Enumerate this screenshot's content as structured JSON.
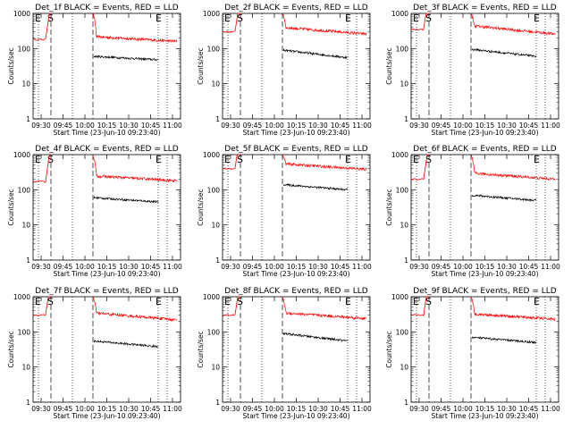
{
  "chart_data": [
    {
      "type": "line",
      "title": "Det_1f BLACK = Events, RED = LLD",
      "xlabel": "Start Time (23-Jun-10 09:23:40)",
      "ylabel": "Counts/sec",
      "yscale": "log",
      "ylim": [
        1,
        1000
      ],
      "xlim_min": [
        23,
        63
      ],
      "xticks": [
        "09:30",
        "09:45",
        "10:00",
        "10:15",
        "10:30",
        "10:45",
        "11:00"
      ],
      "yticks": [
        "1",
        "10",
        "100",
        "1000"
      ],
      "markers": [
        {
          "label": "E",
          "min": 23.5
        },
        {
          "label": "S",
          "min": 30
        }
      ],
      "markers2": [
        {
          "label": "E",
          "min": 54.6
        }
      ],
      "dashed_min": [
        30,
        40.7
      ],
      "dotted_min": [
        23,
        52.8,
        54.6
      ],
      "series": [
        {
          "name": "RED",
          "color": "#ff0000",
          "pre_level": 180,
          "post_level": 220,
          "post_end": 160
        },
        {
          "name": "BLACK",
          "color": "#000000",
          "post_level": 60,
          "post_end": 48
        }
      ]
    },
    {
      "type": "line",
      "title": "Det_2f BLACK = Events, RED = LLD",
      "xlabel": "Start Time (23-Jun-10 09:23:40)",
      "ylabel": "Counts/sec",
      "yscale": "log",
      "ylim": [
        1,
        1000
      ],
      "xlim_min": [
        23,
        63
      ],
      "xticks": [
        "09:30",
        "09:45",
        "10:00",
        "10:15",
        "10:30",
        "10:45",
        "11:00"
      ],
      "yticks": [
        "1",
        "10",
        "100",
        "1000"
      ],
      "markers": [
        {
          "label": "E",
          "min": 23.5
        },
        {
          "label": "S",
          "min": 30
        }
      ],
      "markers2": [
        {
          "label": "E",
          "min": 54.6
        }
      ],
      "dashed_min": [
        30,
        40.7
      ],
      "dotted_min": [
        23,
        52.8,
        54.6
      ],
      "series": [
        {
          "name": "RED",
          "color": "#ff0000",
          "pre_level": 300,
          "post_level": 400,
          "post_end": 260
        },
        {
          "name": "BLACK",
          "color": "#000000",
          "post_level": 90,
          "post_end": 55
        }
      ]
    },
    {
      "type": "line",
      "title": "Det_3f BLACK = Events, RED = LLD",
      "xlabel": "Start Time (23-Jun-10 09:23:40)",
      "ylabel": "Counts/sec",
      "yscale": "log",
      "ylim": [
        1,
        1000
      ],
      "xlim_min": [
        23,
        63
      ],
      "xticks": [
        "09:30",
        "09:45",
        "10:00",
        "10:15",
        "10:30",
        "10:45",
        "11:00"
      ],
      "yticks": [
        "1",
        "10",
        "100",
        "1000"
      ],
      "markers": [
        {
          "label": "E",
          "min": 23.5
        },
        {
          "label": "S",
          "min": 30
        }
      ],
      "markers2": [
        {
          "label": "E",
          "min": 54.6
        }
      ],
      "dashed_min": [
        30,
        40.7
      ],
      "dotted_min": [
        23,
        52.8,
        54.6
      ],
      "series": [
        {
          "name": "RED",
          "color": "#ff0000",
          "pre_level": 350,
          "post_level": 450,
          "post_end": 260
        },
        {
          "name": "BLACK",
          "color": "#000000",
          "post_level": 95,
          "post_end": 60
        }
      ]
    },
    {
      "type": "line",
      "title": "Det_4f BLACK = Events, RED = LLD",
      "xlabel": "Start Time (23-Jun-10 09:23:40)",
      "ylabel": "Counts/sec",
      "yscale": "log",
      "ylim": [
        1,
        1000
      ],
      "xlim_min": [
        23,
        63
      ],
      "xticks": [
        "09:30",
        "09:45",
        "10:00",
        "10:15",
        "10:30",
        "10:45",
        "11:00"
      ],
      "yticks": [
        "1",
        "10",
        "100",
        "1000"
      ],
      "markers": [
        {
          "label": "E",
          "min": 23.5
        },
        {
          "label": "S",
          "min": 30
        }
      ],
      "markers2": [
        {
          "label": "E",
          "min": 54.6
        }
      ],
      "dashed_min": [
        30,
        40.7
      ],
      "dotted_min": [
        23,
        52.8,
        54.6
      ],
      "series": [
        {
          "name": "RED",
          "color": "#ff0000",
          "pre_level": 170,
          "post_level": 250,
          "post_end": 180
        },
        {
          "name": "BLACK",
          "color": "#000000",
          "post_level": 60,
          "post_end": 45
        }
      ]
    },
    {
      "type": "line",
      "title": "Det_5f BLACK = Events, RED = LLD",
      "xlabel": "Start Time (23-Jun-10 09:23:40)",
      "ylabel": "Counts/sec",
      "yscale": "log",
      "ylim": [
        1,
        1000
      ],
      "xlim_min": [
        23,
        63
      ],
      "xticks": [
        "09:30",
        "09:45",
        "10:00",
        "10:15",
        "10:30",
        "10:45",
        "11:00"
      ],
      "yticks": [
        "1",
        "10",
        "100",
        "1000"
      ],
      "markers": [
        {
          "label": "E",
          "min": 23.5
        },
        {
          "label": "S",
          "min": 30
        }
      ],
      "markers2": [
        {
          "label": "E",
          "min": 54.6
        }
      ],
      "dashed_min": [
        30,
        40.7
      ],
      "dotted_min": [
        23,
        52.8,
        54.6
      ],
      "series": [
        {
          "name": "RED",
          "color": "#ff0000",
          "pre_level": 400,
          "post_level": 550,
          "post_end": 380
        },
        {
          "name": "BLACK",
          "color": "#000000",
          "post_level": 140,
          "post_end": 100
        }
      ]
    },
    {
      "type": "line",
      "title": "Det_6f BLACK = Events, RED = LLD",
      "xlabel": "Start Time (23-Jun-10 09:23:40)",
      "ylabel": "Counts/sec",
      "yscale": "log",
      "ylim": [
        1,
        1000
      ],
      "xlim_min": [
        23,
        63
      ],
      "xticks": [
        "09:30",
        "09:45",
        "10:00",
        "10:15",
        "10:30",
        "10:45",
        "11:00"
      ],
      "yticks": [
        "1",
        "10",
        "100",
        "1000"
      ],
      "markers": [
        {
          "label": "E",
          "min": 23.5
        },
        {
          "label": "S",
          "min": 30
        }
      ],
      "markers2": [
        {
          "label": "E",
          "min": 54.6
        }
      ],
      "dashed_min": [
        30,
        40.7
      ],
      "dotted_min": [
        23,
        52.8,
        54.6
      ],
      "series": [
        {
          "name": "RED",
          "color": "#ff0000",
          "pre_level": 200,
          "post_level": 300,
          "post_end": 200
        },
        {
          "name": "BLACK",
          "color": "#000000",
          "post_level": 70,
          "post_end": 50
        }
      ]
    },
    {
      "type": "line",
      "title": "Det_7f BLACK = Events, RED = LLD",
      "xlabel": "Start Time (23-Jun-10 09:23:40)",
      "ylabel": "Counts/sec",
      "yscale": "log",
      "ylim": [
        1,
        1000
      ],
      "xlim_min": [
        23,
        63
      ],
      "xticks": [
        "09:30",
        "09:45",
        "10:00",
        "10:15",
        "10:30",
        "10:45",
        "11:00"
      ],
      "yticks": [
        "1",
        "10",
        "100",
        "1000"
      ],
      "markers": [
        {
          "label": "E",
          "min": 23.5
        },
        {
          "label": "S",
          "min": 30
        }
      ],
      "markers2": [
        {
          "label": "E",
          "min": 54.6
        }
      ],
      "dashed_min": [
        30,
        40.7
      ],
      "dotted_min": [
        23,
        52.8,
        54.6
      ],
      "series": [
        {
          "name": "RED",
          "color": "#ff0000",
          "pre_level": 300,
          "post_level": 350,
          "post_end": 220
        },
        {
          "name": "BLACK",
          "color": "#000000",
          "post_level": 55,
          "post_end": 38
        }
      ]
    },
    {
      "type": "line",
      "title": "Det_8f BLACK = Events, RED = LLD",
      "xlabel": "Start Time (23-Jun-10 09:23:40)",
      "ylabel": "Counts/sec",
      "yscale": "log",
      "ylim": [
        1,
        1000
      ],
      "xlim_min": [
        23,
        63
      ],
      "xticks": [
        "09:30",
        "09:45",
        "10:00",
        "10:15",
        "10:30",
        "10:45",
        "11:00"
      ],
      "yticks": [
        "1",
        "10",
        "100",
        "1000"
      ],
      "markers": [
        {
          "label": "E",
          "min": 23.5
        },
        {
          "label": "S",
          "min": 30
        }
      ],
      "markers2": [
        {
          "label": "E",
          "min": 54.6
        }
      ],
      "dashed_min": [
        30,
        40.7
      ],
      "dotted_min": [
        23,
        52.8,
        54.6
      ],
      "series": [
        {
          "name": "RED",
          "color": "#ff0000",
          "pre_level": 300,
          "post_level": 350,
          "post_end": 240
        },
        {
          "name": "BLACK",
          "color": "#000000",
          "post_level": 90,
          "post_end": 55
        }
      ]
    },
    {
      "type": "line",
      "title": "Det_9f BLACK = Events, RED = LLD",
      "xlabel": "Start Time (23-Jun-10 09:23:40)",
      "ylabel": "Counts/sec",
      "yscale": "log",
      "ylim": [
        1,
        1000
      ],
      "xlim_min": [
        23,
        63
      ],
      "xticks": [
        "09:30",
        "09:45",
        "10:00",
        "10:15",
        "10:30",
        "10:45",
        "11:00"
      ],
      "yticks": [
        "1",
        "10",
        "100",
        "1000"
      ],
      "markers": [
        {
          "label": "E",
          "min": 23.5
        },
        {
          "label": "S",
          "min": 30
        }
      ],
      "markers2": [
        {
          "label": "E",
          "min": 54.6
        }
      ],
      "dashed_min": [
        30,
        40.7
      ],
      "dotted_min": [
        23,
        52.8,
        54.6
      ],
      "series": [
        {
          "name": "RED",
          "color": "#ff0000",
          "pre_level": 300,
          "post_level": 330,
          "post_end": 230
        },
        {
          "name": "BLACK",
          "color": "#000000",
          "post_level": 70,
          "post_end": 50
        }
      ]
    }
  ]
}
